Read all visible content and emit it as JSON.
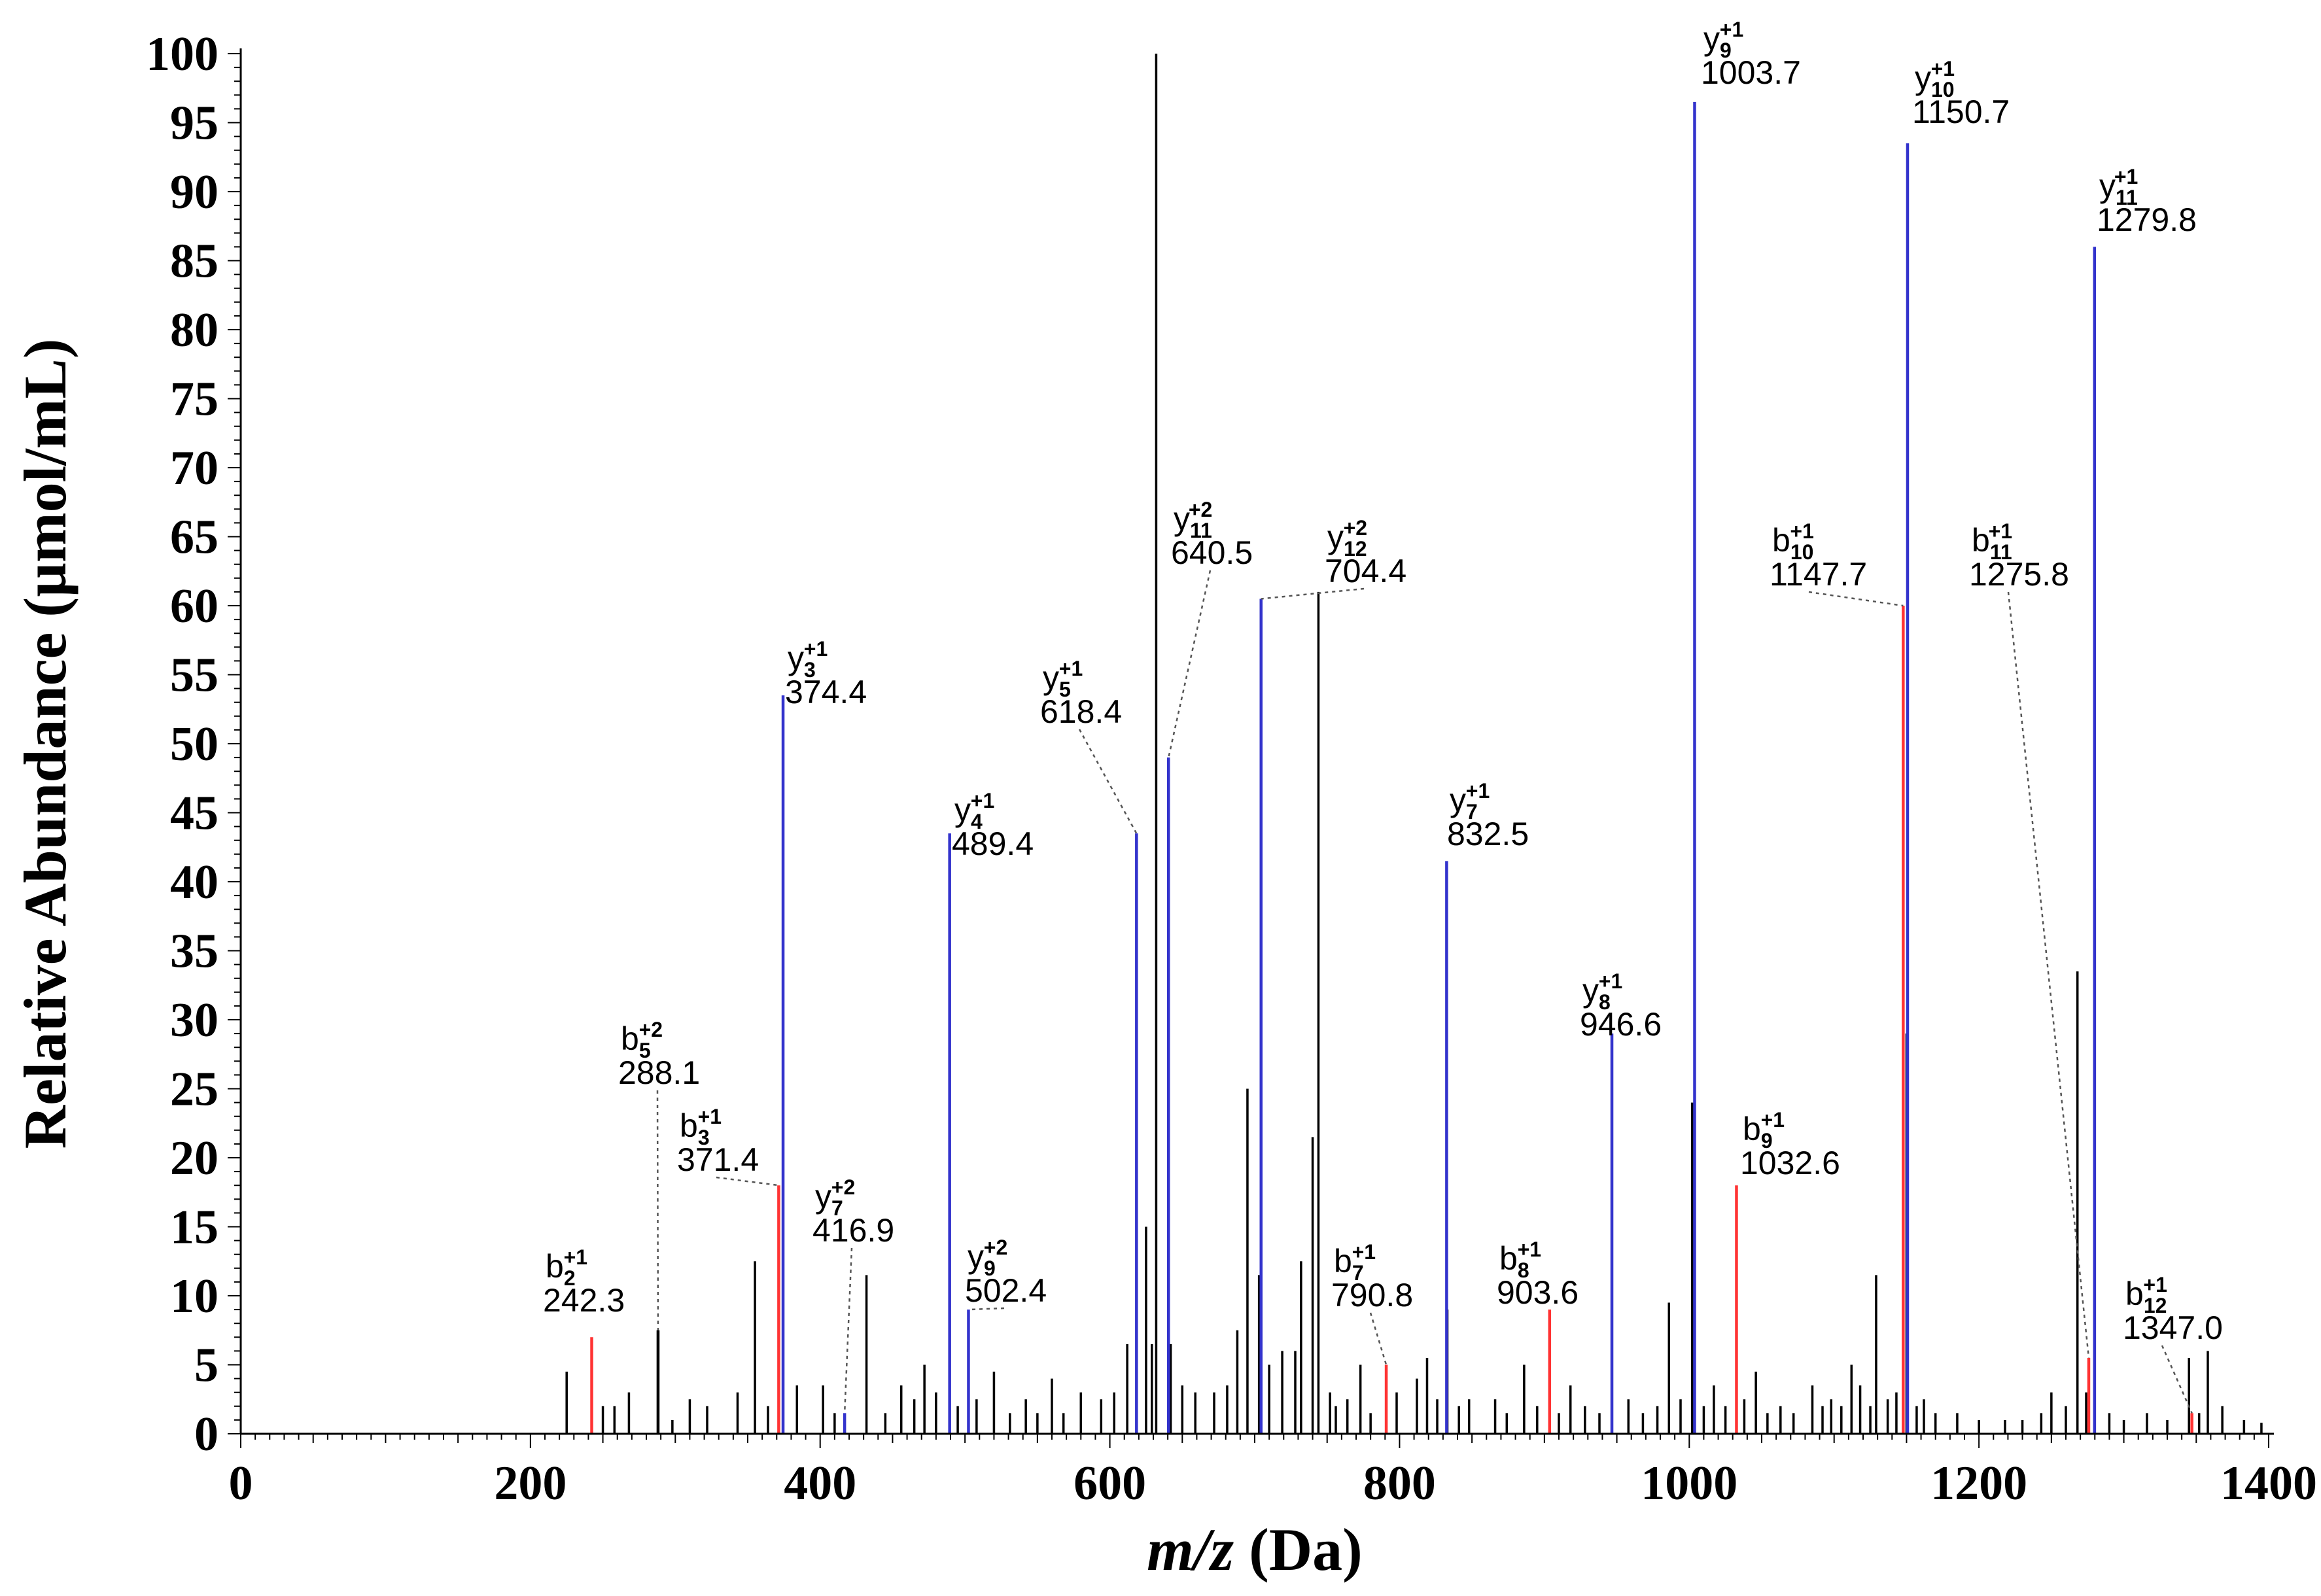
{
  "chart_data": {
    "type": "bar",
    "title": "",
    "xlabel_italic": "m/z",
    "xlabel_rest": " (Da)",
    "ylabel": "Relative Abundance (µmol/mL)",
    "xlim": [
      0,
      1400
    ],
    "ylim": [
      0,
      100
    ],
    "x_ticks": [
      "0",
      "200",
      "400",
      "600",
      "800",
      "1000",
      "1200",
      "1400"
    ],
    "y_ticks": [
      "0",
      "5",
      "10",
      "15",
      "20",
      "25",
      "30",
      "35",
      "40",
      "45",
      "50",
      "55",
      "60",
      "65",
      "70",
      "75",
      "80",
      "85",
      "90",
      "95",
      "100"
    ],
    "colors": {
      "y_ion": "#3333cc",
      "b_ion": "#ff3333",
      "other": "#000000"
    },
    "annotated_peaks": [
      {
        "ion": "b",
        "sub": "2",
        "sup": "+1",
        "label": "242.3",
        "x": 242.3,
        "y": 7.0,
        "type": "b"
      },
      {
        "ion": "b",
        "sub": "5",
        "sup": "+2",
        "label": "288.1",
        "x": 288.1,
        "y": 7.5,
        "type": "other"
      },
      {
        "ion": "b",
        "sub": "3",
        "sup": "+1",
        "label": "371.4",
        "x": 371.4,
        "y": 18.0,
        "type": "b"
      },
      {
        "ion": "y",
        "sub": "3",
        "sup": "+1",
        "label": "374.4",
        "x": 374.4,
        "y": 53.5,
        "type": "y"
      },
      {
        "ion": "y",
        "sub": "7",
        "sup": "+2",
        "label": "416.9",
        "x": 416.9,
        "y": 1.5,
        "type": "y"
      },
      {
        "ion": "y",
        "sub": "4",
        "sup": "+1",
        "label": "489.4",
        "x": 489.4,
        "y": 43.5,
        "type": "y"
      },
      {
        "ion": "y",
        "sub": "9",
        "sup": "+2",
        "label": "502.4",
        "x": 502.4,
        "y": 9.0,
        "type": "y"
      },
      {
        "ion": "y",
        "sub": "5",
        "sup": "+1",
        "label": "618.4",
        "x": 618.4,
        "y": 43.5,
        "type": "y"
      },
      {
        "ion": "y",
        "sub": "11",
        "sup": "+2",
        "label": "640.5",
        "x": 640.5,
        "y": 49.0,
        "type": "y"
      },
      {
        "ion": "y",
        "sub": "12",
        "sup": "+2",
        "label": "704.4",
        "x": 704.4,
        "y": 60.5,
        "type": "y"
      },
      {
        "ion": "b",
        "sub": "7",
        "sup": "+1",
        "label": "790.8",
        "x": 790.8,
        "y": 5.0,
        "type": "b"
      },
      {
        "ion": "y",
        "sub": "7",
        "sup": "+1",
        "label": "832.5",
        "x": 832.5,
        "y": 41.5,
        "type": "y"
      },
      {
        "ion": "b",
        "sub": "8",
        "sup": "+1",
        "label": "903.6",
        "x": 903.6,
        "y": 9.0,
        "type": "b"
      },
      {
        "ion": "y",
        "sub": "8",
        "sup": "+1",
        "label": "946.6",
        "x": 946.6,
        "y": 29.0,
        "type": "y"
      },
      {
        "ion": "y",
        "sub": "9",
        "sup": "+1",
        "label": "1003.7",
        "x": 1003.7,
        "y": 96.5,
        "type": "y"
      },
      {
        "ion": "b",
        "sub": "9",
        "sup": "+1",
        "label": "1032.6",
        "x": 1032.6,
        "y": 18.0,
        "type": "b"
      },
      {
        "ion": "b",
        "sub": "10",
        "sup": "+1",
        "label": "1147.7",
        "x": 1147.7,
        "y": 60.0,
        "type": "b"
      },
      {
        "ion": "y",
        "sub": "10",
        "sup": "+1",
        "label": "1150.7",
        "x": 1150.7,
        "y": 93.5,
        "type": "y"
      },
      {
        "ion": "b",
        "sub": "11",
        "sup": "+1",
        "label": "1275.8",
        "x": 1275.8,
        "y": 5.5,
        "type": "b"
      },
      {
        "ion": "y",
        "sub": "11",
        "sup": "+1",
        "label": "1279.8",
        "x": 1279.8,
        "y": 86.0,
        "type": "y"
      },
      {
        "ion": "b",
        "sub": "12",
        "sup": "+1",
        "label": "1347.0",
        "x": 1347.0,
        "y": 1.5,
        "type": "b"
      }
    ],
    "other_peaks": [
      {
        "x": 632,
        "y": 100
      },
      {
        "x": 744,
        "y": 61
      },
      {
        "x": 1268,
        "y": 33.5
      },
      {
        "x": 695,
        "y": 25
      },
      {
        "x": 1002,
        "y": 24
      },
      {
        "x": 1150,
        "y": 29
      },
      {
        "x": 1280,
        "y": 39.5
      },
      {
        "x": 740,
        "y": 21.5
      },
      {
        "x": 732,
        "y": 12.5
      },
      {
        "x": 625,
        "y": 15
      },
      {
        "x": 703,
        "y": 11.5
      },
      {
        "x": 1129,
        "y": 11.5
      },
      {
        "x": 355,
        "y": 12.5
      },
      {
        "x": 432,
        "y": 11.5
      },
      {
        "x": 986,
        "y": 9.5
      },
      {
        "x": 833,
        "y": 9.0
      },
      {
        "x": 688,
        "y": 7.5
      },
      {
        "x": 612,
        "y": 6.5
      },
      {
        "x": 629,
        "y": 6.5
      },
      {
        "x": 642,
        "y": 6.5
      },
      {
        "x": 728,
        "y": 6.0
      },
      {
        "x": 288,
        "y": 7.5
      },
      {
        "x": 773,
        "y": 5.0
      },
      {
        "x": 819,
        "y": 5.5
      },
      {
        "x": 886,
        "y": 5.0
      },
      {
        "x": 1345,
        "y": 5.5
      },
      {
        "x": 1358,
        "y": 6.0
      },
      {
        "x": 225,
        "y": 4.5
      },
      {
        "x": 268,
        "y": 3.0
      },
      {
        "x": 310,
        "y": 2.5
      },
      {
        "x": 343,
        "y": 3.0
      },
      {
        "x": 384,
        "y": 3.5
      },
      {
        "x": 402,
        "y": 3.5
      },
      {
        "x": 456,
        "y": 3.5
      },
      {
        "x": 472,
        "y": 5.0
      },
      {
        "x": 520,
        "y": 4.5
      },
      {
        "x": 542,
        "y": 2.5
      },
      {
        "x": 560,
        "y": 4.0
      },
      {
        "x": 580,
        "y": 3.0
      },
      {
        "x": 659,
        "y": 3.0
      },
      {
        "x": 672,
        "y": 3.0
      },
      {
        "x": 710,
        "y": 5.0
      },
      {
        "x": 752,
        "y": 3.0
      },
      {
        "x": 798,
        "y": 3.0
      },
      {
        "x": 812,
        "y": 4.0
      },
      {
        "x": 848,
        "y": 2.5
      },
      {
        "x": 866,
        "y": 2.5
      },
      {
        "x": 918,
        "y": 3.5
      },
      {
        "x": 958,
        "y": 2.5
      },
      {
        "x": 1017,
        "y": 3.5
      },
      {
        "x": 1046,
        "y": 4.5
      },
      {
        "x": 1063,
        "y": 2.0
      },
      {
        "x": 1085,
        "y": 3.5
      },
      {
        "x": 1098,
        "y": 2.5
      },
      {
        "x": 1112,
        "y": 5.0
      },
      {
        "x": 1118,
        "y": 3.5
      },
      {
        "x": 1162,
        "y": 2.5
      },
      {
        "x": 1185,
        "y": 1.5
      },
      {
        "x": 1218,
        "y": 1.0
      },
      {
        "x": 1243,
        "y": 1.5
      },
      {
        "x": 1250,
        "y": 3.0
      },
      {
        "x": 1316,
        "y": 1.5
      },
      {
        "x": 1368,
        "y": 2.0
      },
      {
        "x": 1383,
        "y": 1.0
      },
      {
        "x": 250,
        "y": 2.0
      },
      {
        "x": 258,
        "y": 2.0
      },
      {
        "x": 298,
        "y": 1.0
      },
      {
        "x": 322,
        "y": 2.0
      },
      {
        "x": 364,
        "y": 2.0
      },
      {
        "x": 410,
        "y": 1.5
      },
      {
        "x": 445,
        "y": 1.5
      },
      {
        "x": 465,
        "y": 2.5
      },
      {
        "x": 480,
        "y": 3.0
      },
      {
        "x": 495,
        "y": 2.0
      },
      {
        "x": 508,
        "y": 2.5
      },
      {
        "x": 531,
        "y": 1.5
      },
      {
        "x": 550,
        "y": 1.5
      },
      {
        "x": 568,
        "y": 1.5
      },
      {
        "x": 594,
        "y": 2.5
      },
      {
        "x": 603,
        "y": 3.0
      },
      {
        "x": 650,
        "y": 3.5
      },
      {
        "x": 681,
        "y": 3.5
      },
      {
        "x": 719,
        "y": 6.0
      },
      {
        "x": 756,
        "y": 2.0
      },
      {
        "x": 764,
        "y": 2.5
      },
      {
        "x": 780,
        "y": 1.5
      },
      {
        "x": 826,
        "y": 2.5
      },
      {
        "x": 841,
        "y": 2.0
      },
      {
        "x": 874,
        "y": 1.5
      },
      {
        "x": 895,
        "y": 2.0
      },
      {
        "x": 910,
        "y": 1.5
      },
      {
        "x": 928,
        "y": 2.0
      },
      {
        "x": 938,
        "y": 1.5
      },
      {
        "x": 968,
        "y": 1.5
      },
      {
        "x": 978,
        "y": 2.0
      },
      {
        "x": 994,
        "y": 2.5
      },
      {
        "x": 1010,
        "y": 2.0
      },
      {
        "x": 1025,
        "y": 2.0
      },
      {
        "x": 1038,
        "y": 2.5
      },
      {
        "x": 1054,
        "y": 1.5
      },
      {
        "x": 1072,
        "y": 1.5
      },
      {
        "x": 1092,
        "y": 2.0
      },
      {
        "x": 1105,
        "y": 2.0
      },
      {
        "x": 1125,
        "y": 2.0
      },
      {
        "x": 1137,
        "y": 2.5
      },
      {
        "x": 1143,
        "y": 3.0
      },
      {
        "x": 1157,
        "y": 2.0
      },
      {
        "x": 1170,
        "y": 1.5
      },
      {
        "x": 1200,
        "y": 1.0
      },
      {
        "x": 1230,
        "y": 1.0
      },
      {
        "x": 1260,
        "y": 2.0
      },
      {
        "x": 1274,
        "y": 3.0
      },
      {
        "x": 1290,
        "y": 1.5
      },
      {
        "x": 1300,
        "y": 1.0
      },
      {
        "x": 1330,
        "y": 1.0
      },
      {
        "x": 1352,
        "y": 1.5
      },
      {
        "x": 1395,
        "y": 0.8
      }
    ]
  }
}
